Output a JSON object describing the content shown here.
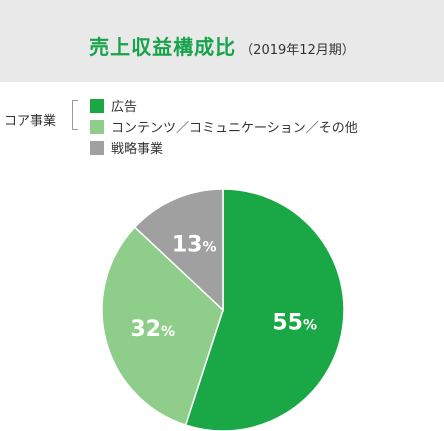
{
  "header": {
    "title": "売上収益構成比",
    "subtitle": "（2019年12月期）"
  },
  "legend": {
    "group_label": "コア事業",
    "items": [
      {
        "label": "広告",
        "color": "#1aa847"
      },
      {
        "label": "コンテンツ／コミュニケーション／その他",
        "color": "#8fcd8a"
      },
      {
        "label": "戦略事業",
        "color": "#a0a0a0"
      }
    ]
  },
  "chart_data": {
    "type": "pie",
    "categories": [
      "広告",
      "コンテンツ／コミュニケーション／その他",
      "戦略事業"
    ],
    "values": [
      55,
      32,
      13
    ],
    "labels": [
      "55%",
      "32%",
      "13%"
    ],
    "colors": [
      "#1aa847",
      "#8fcd8a",
      "#a0a0a0"
    ],
    "title": "売上収益構成比",
    "subtitle": "（2019年12月期）"
  }
}
